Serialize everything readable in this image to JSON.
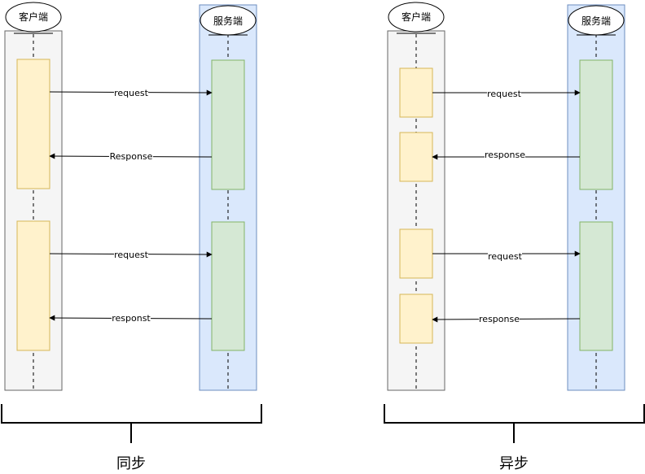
{
  "diagrams": [
    {
      "caption": "同步",
      "client": "客户端",
      "server": "服务端",
      "messages": [
        "request",
        "Response",
        "request",
        "responst"
      ]
    },
    {
      "caption": "异步",
      "client": "客户端",
      "server": "服务端",
      "messages": [
        "request",
        "response",
        "request",
        "response"
      ]
    }
  ],
  "colors": {
    "client_lane": "#f5f5f5",
    "client_lane_border": "#666666",
    "server_lane": "#dae8fc",
    "server_lane_border": "#6c8ebf",
    "client_activation": "#fff2cc",
    "client_activation_border": "#d6b656",
    "server_activation": "#d5e8d4",
    "server_activation_border": "#82b366"
  }
}
